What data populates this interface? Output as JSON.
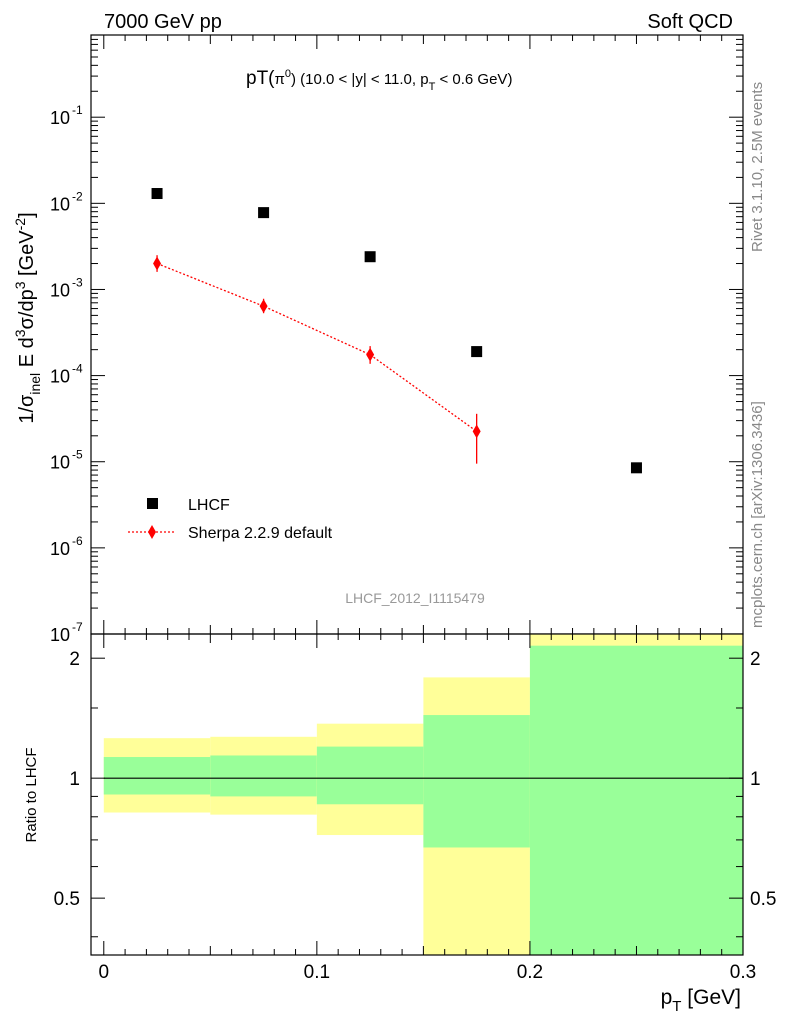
{
  "header": {
    "left": "7000 GeV pp",
    "right": "Soft QCD"
  },
  "side_labels": {
    "rivet": "Rivet 3.1.10,  2.5M events",
    "mcplots": "mcplots.cern.ch [arXiv:1306.3436]"
  },
  "chart_data": [
    {
      "type": "scatter",
      "title": "pT(π⁰) (10.0 < |y| < 11.0, p_T < 0.6 GeV)",
      "title_parts": {
        "main": "pT(",
        "pi": "π",
        "pi_sup": "0",
        "rest": ") (10.0 < |y| < 11.0, p",
        "sub": "T",
        "tail": " < 0.6 GeV)"
      },
      "ylabel": "1/σ_inel E d³σ/dp³ [GeV⁻²]",
      "ylabel_parts": {
        "a": "1/σ",
        "a_sub": "inel",
        "b": " E d",
        "b_sup": "3",
        "c": "σ/dp",
        "c_sup": "3",
        "d": " [GeV",
        "d_sup": "-2",
        "e": "]"
      },
      "y_scale": "log",
      "ylim": [
        1e-07,
        0.9
      ],
      "xlim": [
        -0.006,
        0.3
      ],
      "y_tick_labels": [
        "10",
        "10",
        "10",
        "10",
        "10",
        "10",
        "10"
      ],
      "y_tick_exponents": [
        "-7",
        "-6",
        "-5",
        "-4",
        "-3",
        "-2",
        "-1"
      ],
      "y_tick_values": [
        1e-07,
        1e-06,
        1e-05,
        0.0001,
        0.001,
        0.01,
        0.1
      ],
      "watermark": "LHCF_2012_I1115479",
      "legend_position": "bottom-left",
      "series": [
        {
          "name": "LHCF",
          "color": "#000000",
          "marker": "square",
          "x": [
            0.025,
            0.075,
            0.125,
            0.175,
            0.25
          ],
          "y": [
            0.013,
            0.0078,
            0.0024,
            0.00019,
            8.5e-06
          ]
        },
        {
          "name": "Sherpa 2.2.9 default",
          "color": "#ff0000",
          "marker": "diamond",
          "line": "dotted",
          "x": [
            0.025,
            0.075,
            0.125,
            0.175
          ],
          "y": [
            0.002,
            0.00064,
            0.000175,
            2.25e-05
          ],
          "y_err_low": [
            0.0016,
            0.00053,
            0.000137,
            9.5e-06
          ],
          "y_err_high": [
            0.0025,
            0.00078,
            0.00022,
            3.6e-05
          ]
        }
      ]
    },
    {
      "type": "area",
      "ylabel": "Ratio to LHCF",
      "xlabel": "p_T [GeV]",
      "xlabel_parts": {
        "p": "p",
        "sub": "T",
        "unit": " [GeV]"
      },
      "ylim": [
        0.36,
        2.3
      ],
      "xlim": [
        -0.006,
        0.3
      ],
      "x_tick_labels": [
        "0",
        "0.1",
        "0.2",
        "0.3"
      ],
      "x_tick_values": [
        0,
        0.1,
        0.2,
        0.3
      ],
      "y_tick_labels": [
        "0.5",
        "1",
        "2"
      ],
      "y_tick_values": [
        0.5,
        1,
        2
      ],
      "reference_line": 1,
      "bands": [
        {
          "x0": 0.0,
          "x1": 0.05,
          "outer_low": 0.82,
          "outer_high": 1.26,
          "inner_low": 0.91,
          "inner_high": 1.13
        },
        {
          "x0": 0.05,
          "x1": 0.1,
          "outer_low": 0.81,
          "outer_high": 1.27,
          "inner_low": 0.9,
          "inner_high": 1.14
        },
        {
          "x0": 0.1,
          "x1": 0.15,
          "outer_low": 0.72,
          "outer_high": 1.37,
          "inner_low": 0.86,
          "inner_high": 1.2
        },
        {
          "x0": 0.15,
          "x1": 0.2,
          "outer_low": 0.36,
          "outer_high": 1.79,
          "inner_low": 0.67,
          "inner_high": 1.44
        },
        {
          "x0": 0.2,
          "x1": 0.3,
          "outer_low": 0.36,
          "outer_high": 2.3,
          "inner_low": 0.36,
          "inner_high": 2.15
        }
      ],
      "colors": {
        "outer": "#ffff99",
        "inner": "#99ff99"
      }
    }
  ]
}
